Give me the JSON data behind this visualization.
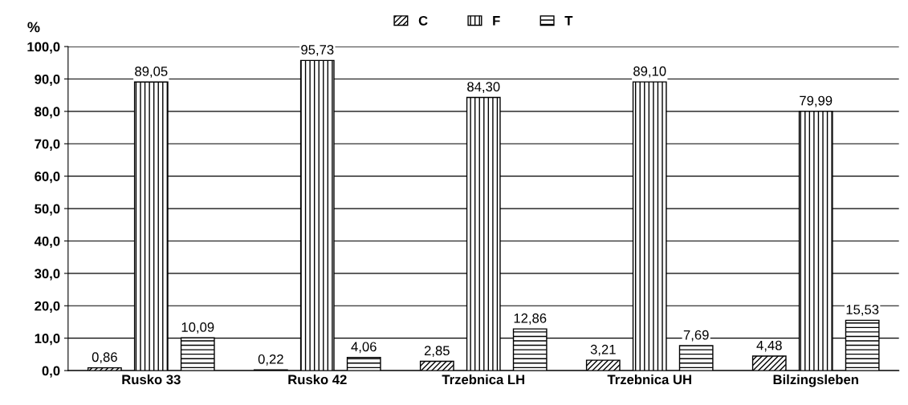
{
  "chart_data": {
    "type": "bar",
    "ylabel": "%",
    "categories": [
      "Rusko 33",
      "Rusko 42",
      "Trzebnica LH",
      "Trzebnica UH",
      "Bilzingsleben"
    ],
    "series": [
      {
        "name": "C",
        "color": "#000000",
        "values": [
          0.86,
          0.22,
          2.85,
          3.21,
          4.48
        ],
        "value_labels": [
          "0,86",
          "0,22",
          "2,85",
          "3,21",
          "4,48"
        ]
      },
      {
        "name": "F",
        "color": "#000000",
        "values": [
          89.05,
          95.73,
          84.3,
          89.1,
          79.99
        ],
        "value_labels": [
          "89,05",
          "95,73",
          "84,30",
          "89,10",
          "79,99"
        ]
      },
      {
        "name": "T",
        "color": "#000000",
        "values": [
          10.09,
          4.06,
          12.86,
          7.69,
          15.53
        ],
        "value_labels": [
          "10,09",
          "4,06",
          "12,86",
          "7,69",
          "15,53"
        ]
      }
    ],
    "ylim": [
      0,
      100
    ],
    "yticks": [
      {
        "value": 0,
        "label": "0,0"
      },
      {
        "value": 10,
        "label": "10,0"
      },
      {
        "value": 20,
        "label": "20,0"
      },
      {
        "value": 30,
        "label": "30,0"
      },
      {
        "value": 40,
        "label": "40,0"
      },
      {
        "value": 50,
        "label": "50,0"
      },
      {
        "value": 60,
        "label": "60,0"
      },
      {
        "value": 70,
        "label": "70,0"
      },
      {
        "value": 80,
        "label": "80,0"
      },
      {
        "value": 90,
        "label": "90,0"
      },
      {
        "value": 100,
        "label": "100,0"
      }
    ],
    "grid": "y",
    "legend": "top"
  }
}
